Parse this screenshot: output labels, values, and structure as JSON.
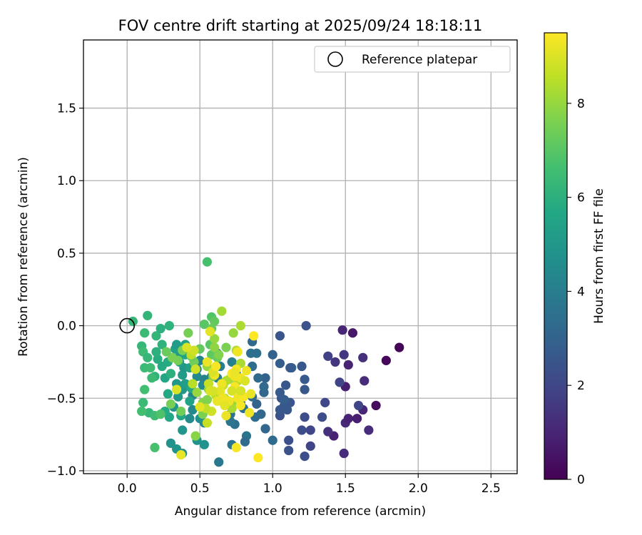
{
  "chart_data": {
    "type": "scatter",
    "title": "FOV centre drift starting at 2025/09/24 18:18:11",
    "xlabel": "Angular distance from reference (arcmin)",
    "ylabel": "Rotation from reference (arcmin)",
    "xlim": [
      -0.3,
      2.68
    ],
    "ylim": [
      -1.02,
      1.97
    ],
    "xticks": [
      0.0,
      0.5,
      1.0,
      1.5,
      2.0,
      2.5
    ],
    "xtick_labels": [
      "0.0",
      "0.5",
      "1.0",
      "1.5",
      "2.0",
      "2.5"
    ],
    "yticks": [
      -1.0,
      -0.5,
      0.0,
      0.5,
      1.0,
      1.5
    ],
    "ytick_labels": [
      "−1.0",
      "−0.5",
      "0.0",
      "0.5",
      "1.0",
      "1.5"
    ],
    "grid": true,
    "legend": {
      "position": "top-right",
      "entries": [
        "Reference platepar"
      ]
    },
    "reference_point": {
      "x": 0.0,
      "y": 0.0
    },
    "colorbar": {
      "label": "Hours from first FF file",
      "colormap": "viridis",
      "range": [
        0,
        9.5
      ],
      "ticks": [
        0,
        2,
        4,
        6,
        8
      ],
      "tick_labels": [
        "0",
        "2",
        "4",
        "6",
        "8"
      ]
    },
    "columns": [
      "x",
      "y",
      "hours"
    ],
    "points": [
      [
        1.87,
        -0.15,
        0.1
      ],
      [
        1.78,
        -0.24,
        0.2
      ],
      [
        1.71,
        -0.55,
        0.3
      ],
      [
        1.55,
        -0.05,
        0.6
      ],
      [
        1.52,
        -0.27,
        0.9
      ],
      [
        1.5,
        -0.42,
        0.8
      ],
      [
        1.48,
        -0.03,
        1.0
      ],
      [
        1.5,
        -0.67,
        1.1
      ],
      [
        1.52,
        -0.64,
        0.9
      ],
      [
        1.58,
        -0.64,
        0.8
      ],
      [
        1.62,
        -0.58,
        1.0
      ],
      [
        1.66,
        -0.72,
        1.2
      ],
      [
        1.62,
        -0.22,
        1.3
      ],
      [
        1.63,
        -0.38,
        1.2
      ],
      [
        1.49,
        -0.88,
        1.2
      ],
      [
        1.42,
        -0.76,
        0.9
      ],
      [
        1.38,
        -0.73,
        1.3
      ],
      [
        1.49,
        -0.2,
        1.5
      ],
      [
        1.43,
        -0.25,
        1.5
      ],
      [
        1.38,
        -0.21,
        1.8
      ],
      [
        1.46,
        -0.39,
        1.9
      ],
      [
        1.59,
        -0.55,
        2.0
      ],
      [
        1.36,
        -0.53,
        2.0
      ],
      [
        1.34,
        -0.63,
        2.2
      ],
      [
        1.26,
        -0.72,
        2.0
      ],
      [
        1.26,
        -0.83,
        1.9
      ],
      [
        1.22,
        -0.9,
        2.3
      ],
      [
        1.2,
        -0.72,
        2.2
      ],
      [
        1.22,
        -0.63,
        2.2
      ],
      [
        1.11,
        -0.86,
        2.4
      ],
      [
        1.11,
        -0.79,
        2.3
      ],
      [
        1.23,
        0.0,
        2.4
      ],
      [
        1.05,
        -0.07,
        2.5
      ],
      [
        1.22,
        -0.44,
        2.6
      ],
      [
        1.2,
        -0.28,
        2.6
      ],
      [
        1.22,
        -0.37,
        2.7
      ],
      [
        1.13,
        -0.29,
        2.9
      ],
      [
        1.12,
        -0.29,
        2.7
      ],
      [
        1.09,
        -0.41,
        2.6
      ],
      [
        1.06,
        -0.5,
        2.5
      ],
      [
        1.08,
        -0.55,
        2.6
      ],
      [
        1.12,
        -0.53,
        2.5
      ],
      [
        1.1,
        -0.58,
        2.6
      ],
      [
        1.05,
        -0.62,
        2.4
      ],
      [
        1.05,
        -0.58,
        2.6
      ],
      [
        1.05,
        -0.46,
        2.7
      ],
      [
        1.08,
        -0.51,
        2.8
      ],
      [
        1.05,
        -0.26,
        2.8
      ],
      [
        1.0,
        -0.2,
        3.0
      ],
      [
        0.95,
        -0.36,
        3.0
      ],
      [
        0.94,
        -0.46,
        3.1
      ],
      [
        0.94,
        -0.42,
        3.3
      ],
      [
        0.95,
        -0.71,
        3.1
      ],
      [
        1.0,
        -0.79,
        3.3
      ],
      [
        0.92,
        -0.61,
        3.2
      ],
      [
        0.89,
        -0.54,
        3.0
      ],
      [
        0.86,
        -0.49,
        3.3
      ],
      [
        0.86,
        -0.28,
        3.4
      ],
      [
        0.86,
        -0.11,
        3.2
      ],
      [
        0.85,
        -0.19,
        3.5
      ],
      [
        0.89,
        -0.19,
        3.5
      ],
      [
        0.9,
        -0.36,
        3.3
      ],
      [
        0.88,
        -0.63,
        3.4
      ],
      [
        0.8,
        -0.57,
        3.5
      ],
      [
        0.82,
        -0.76,
        3.6
      ],
      [
        0.81,
        -0.8,
        3.3
      ],
      [
        0.72,
        -0.82,
        3.6
      ],
      [
        0.74,
        -0.68,
        3.5
      ],
      [
        0.71,
        -0.61,
        3.6
      ],
      [
        0.78,
        -0.53,
        3.8
      ],
      [
        0.71,
        -0.66,
        3.7
      ],
      [
        0.63,
        -0.94,
        3.8
      ],
      [
        0.78,
        -0.45,
        3.8
      ],
      [
        0.75,
        -0.33,
        3.7
      ],
      [
        0.72,
        -0.25,
        4.1
      ],
      [
        0.64,
        -0.28,
        4.0
      ],
      [
        0.62,
        -0.36,
        4.0
      ],
      [
        0.58,
        -0.35,
        4.2
      ],
      [
        0.62,
        -0.19,
        4.0
      ],
      [
        0.5,
        -0.24,
        4.2
      ],
      [
        0.48,
        -0.3,
        4.3
      ],
      [
        0.53,
        -0.37,
        4.2
      ],
      [
        0.48,
        -0.35,
        4.4
      ],
      [
        0.45,
        -0.48,
        4.2
      ],
      [
        0.52,
        -0.41,
        4.4
      ],
      [
        0.45,
        -0.58,
        4.4
      ],
      [
        0.53,
        -0.67,
        4.4
      ],
      [
        0.5,
        -0.64,
        4.7
      ],
      [
        0.43,
        -0.64,
        4.5
      ],
      [
        0.48,
        -0.79,
        4.8
      ],
      [
        0.53,
        -0.82,
        4.8
      ],
      [
        0.38,
        -0.88,
        4.7
      ],
      [
        0.34,
        -0.85,
        4.9
      ],
      [
        0.3,
        -0.81,
        4.8
      ],
      [
        0.38,
        -0.72,
        4.9
      ],
      [
        0.32,
        -0.56,
        4.9
      ],
      [
        0.35,
        -0.49,
        5.1
      ],
      [
        0.38,
        -0.44,
        5.0
      ],
      [
        0.34,
        -0.4,
        5.0
      ],
      [
        0.38,
        -0.34,
        5.2
      ],
      [
        0.39,
        -0.29,
        5.0
      ],
      [
        0.36,
        -0.25,
        5.2
      ],
      [
        0.36,
        -0.21,
        5.2
      ],
      [
        0.33,
        -0.16,
        5.4
      ],
      [
        0.34,
        -0.13,
        5.2
      ],
      [
        0.4,
        -0.13,
        5.4
      ],
      [
        0.4,
        -0.2,
        5.5
      ],
      [
        0.43,
        -0.29,
        5.4
      ],
      [
        0.4,
        -0.4,
        5.3
      ],
      [
        0.44,
        -0.43,
        5.6
      ],
      [
        0.43,
        -0.52,
        5.5
      ],
      [
        0.37,
        -0.62,
        5.6
      ],
      [
        0.29,
        -0.63,
        5.7
      ],
      [
        0.26,
        -0.59,
        5.8
      ],
      [
        0.28,
        -0.47,
        5.7
      ],
      [
        0.26,
        -0.36,
        5.6
      ],
      [
        0.24,
        -0.28,
        5.8
      ],
      [
        0.21,
        -0.23,
        5.9
      ],
      [
        0.28,
        -0.25,
        5.8
      ],
      [
        0.3,
        -0.33,
        6.0
      ],
      [
        0.2,
        -0.18,
        6.0
      ],
      [
        0.19,
        -0.35,
        6.1
      ],
      [
        0.24,
        -0.13,
        6.1
      ],
      [
        0.2,
        -0.07,
        6.2
      ],
      [
        0.23,
        -0.02,
        6.0
      ],
      [
        0.29,
        0.0,
        6.1
      ],
      [
        0.14,
        0.07,
        6.2
      ],
      [
        0.04,
        0.03,
        6.3
      ],
      [
        0.12,
        -0.05,
        6.4
      ],
      [
        0.1,
        -0.14,
        6.3
      ],
      [
        0.11,
        -0.18,
        6.5
      ],
      [
        0.14,
        -0.22,
        6.3
      ],
      [
        0.12,
        -0.29,
        6.4
      ],
      [
        0.16,
        -0.29,
        6.5
      ],
      [
        0.17,
        -0.36,
        6.4
      ],
      [
        0.12,
        -0.44,
        6.6
      ],
      [
        0.15,
        -0.6,
        6.3
      ],
      [
        0.19,
        -0.62,
        6.5
      ],
      [
        0.11,
        -0.53,
        6.4
      ],
      [
        0.1,
        -0.59,
        6.6
      ],
      [
        0.19,
        -0.84,
        6.7
      ],
      [
        0.23,
        -0.61,
        6.8
      ],
      [
        0.55,
        0.44,
        6.7
      ],
      [
        0.58,
        0.06,
        6.9
      ],
      [
        0.6,
        0.03,
        7.2
      ],
      [
        0.53,
        0.01,
        7.0
      ],
      [
        0.58,
        -0.02,
        7.3
      ],
      [
        0.57,
        -0.13,
        7.0
      ],
      [
        0.58,
        -0.2,
        7.1
      ],
      [
        0.62,
        -0.22,
        7.3
      ],
      [
        0.5,
        -0.16,
        7.2
      ],
      [
        0.46,
        -0.25,
        7.4
      ],
      [
        0.44,
        -0.21,
        7.2
      ],
      [
        0.42,
        -0.05,
        7.5
      ],
      [
        0.38,
        -0.17,
        7.6
      ],
      [
        0.35,
        -0.24,
        7.5
      ],
      [
        0.31,
        -0.22,
        7.6
      ],
      [
        0.27,
        -0.18,
        7.3
      ],
      [
        0.34,
        -0.44,
        7.8
      ],
      [
        0.3,
        -0.54,
        7.5
      ],
      [
        0.37,
        -0.59,
        7.4
      ],
      [
        0.47,
        -0.76,
        7.8
      ],
      [
        0.52,
        -0.61,
        7.6
      ],
      [
        0.52,
        -0.53,
        7.8
      ],
      [
        0.48,
        -0.46,
        8.0
      ],
      [
        0.55,
        -0.51,
        7.7
      ],
      [
        0.56,
        -0.44,
        7.8
      ],
      [
        0.59,
        -0.35,
        7.6
      ],
      [
        0.55,
        -0.28,
        8.0
      ],
      [
        0.6,
        -0.09,
        8.0
      ],
      [
        0.6,
        -0.15,
        7.9
      ],
      [
        0.63,
        -0.2,
        7.7
      ],
      [
        0.68,
        -0.15,
        7.6
      ],
      [
        0.65,
        0.1,
        8.2
      ],
      [
        0.73,
        -0.05,
        8.0
      ],
      [
        0.78,
        0.0,
        8.3
      ],
      [
        0.75,
        -0.17,
        8.4
      ],
      [
        0.78,
        -0.26,
        8.3
      ],
      [
        0.7,
        -0.37,
        8.2
      ],
      [
        0.76,
        -0.38,
        8.4
      ],
      [
        0.73,
        -0.53,
        8.0
      ],
      [
        0.72,
        -0.57,
        8.3
      ],
      [
        0.67,
        -0.5,
        8.2
      ],
      [
        0.63,
        -0.46,
        8.5
      ],
      [
        0.66,
        -0.41,
        8.6
      ],
      [
        0.68,
        -0.38,
        8.4
      ],
      [
        0.56,
        -0.4,
        8.7
      ],
      [
        0.61,
        -0.48,
        8.6
      ],
      [
        0.58,
        -0.59,
        8.8
      ],
      [
        0.54,
        -0.57,
        8.6
      ],
      [
        0.55,
        -0.67,
        8.7
      ],
      [
        0.45,
        -0.4,
        8.5
      ],
      [
        0.47,
        -0.3,
        8.8
      ],
      [
        0.44,
        -0.2,
        8.6
      ],
      [
        0.46,
        -0.17,
        8.8
      ],
      [
        0.34,
        -0.44,
        9.0
      ],
      [
        0.37,
        -0.89,
        9.2
      ],
      [
        0.41,
        -0.15,
        9.0
      ],
      [
        0.5,
        -0.56,
        9.1
      ],
      [
        0.57,
        -0.45,
        9.0
      ],
      [
        0.57,
        -0.04,
        9.1
      ],
      [
        0.55,
        -0.25,
        9.2
      ],
      [
        0.6,
        -0.34,
        9.3
      ],
      [
        0.59,
        -0.32,
        9.0
      ],
      [
        0.61,
        -0.28,
        9.4
      ],
      [
        0.65,
        -0.4,
        9.3
      ],
      [
        0.64,
        -0.45,
        9.1
      ],
      [
        0.66,
        -0.5,
        9.3
      ],
      [
        0.7,
        -0.52,
        9.3
      ],
      [
        0.72,
        -0.45,
        9.2
      ],
      [
        0.74,
        -0.42,
        9.4
      ],
      [
        0.78,
        -0.36,
        9.3
      ],
      [
        0.75,
        -0.3,
        9.4
      ],
      [
        0.72,
        -0.33,
        9.5
      ],
      [
        0.74,
        -0.35,
        9.3
      ],
      [
        0.76,
        -0.18,
        9.3
      ],
      [
        0.74,
        -0.32,
        9.2
      ],
      [
        0.78,
        -0.55,
        9.4
      ],
      [
        0.75,
        -0.84,
        9.4
      ],
      [
        0.76,
        -0.5,
        9.3
      ],
      [
        0.68,
        -0.62,
        9.2
      ],
      [
        0.82,
        -0.31,
        9.3
      ],
      [
        0.8,
        -0.49,
        9.4
      ],
      [
        0.85,
        -0.47,
        9.2
      ],
      [
        0.84,
        -0.6,
        9.3
      ],
      [
        0.87,
        -0.07,
        9.5
      ],
      [
        0.9,
        -0.91,
        9.5
      ],
      [
        0.62,
        -0.52,
        9.2
      ],
      [
        0.67,
        -0.55,
        9.1
      ],
      [
        0.81,
        -0.38,
        9.0
      ],
      [
        0.78,
        -0.45,
        8.9
      ],
      [
        0.72,
        -0.45,
        8.9
      ],
      [
        0.59,
        -0.45,
        8.9
      ]
    ]
  }
}
